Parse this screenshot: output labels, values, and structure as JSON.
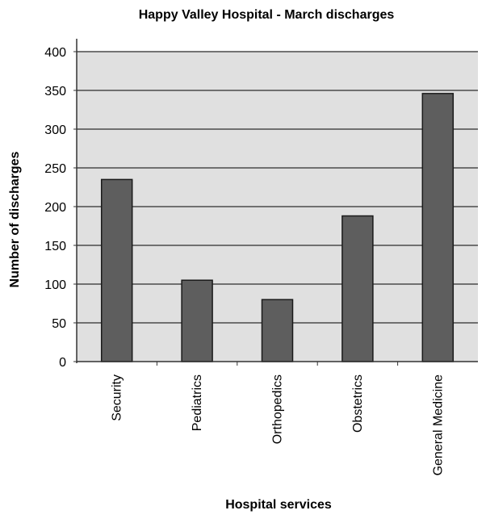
{
  "chart_data": {
    "type": "bar",
    "title": "Happy Valley Hospital - March discharges",
    "xlabel": "Hospital services",
    "ylabel": "Number of discharges",
    "categories": [
      "Security",
      "Pediatrics",
      "Orthopedics",
      "Obstetrics",
      "General Medicine"
    ],
    "values": [
      235,
      105,
      80,
      188,
      346
    ],
    "ylim": [
      0,
      400
    ],
    "yticks": [
      0,
      50,
      100,
      150,
      200,
      250,
      300,
      350,
      400
    ],
    "grid": true,
    "legend": "none",
    "colors": {
      "bar_fill": "#5e5e5e",
      "bar_stroke": "#1a1a1a",
      "plot_background": "#e0e0e0",
      "gridline": "#4a4a4a"
    }
  }
}
